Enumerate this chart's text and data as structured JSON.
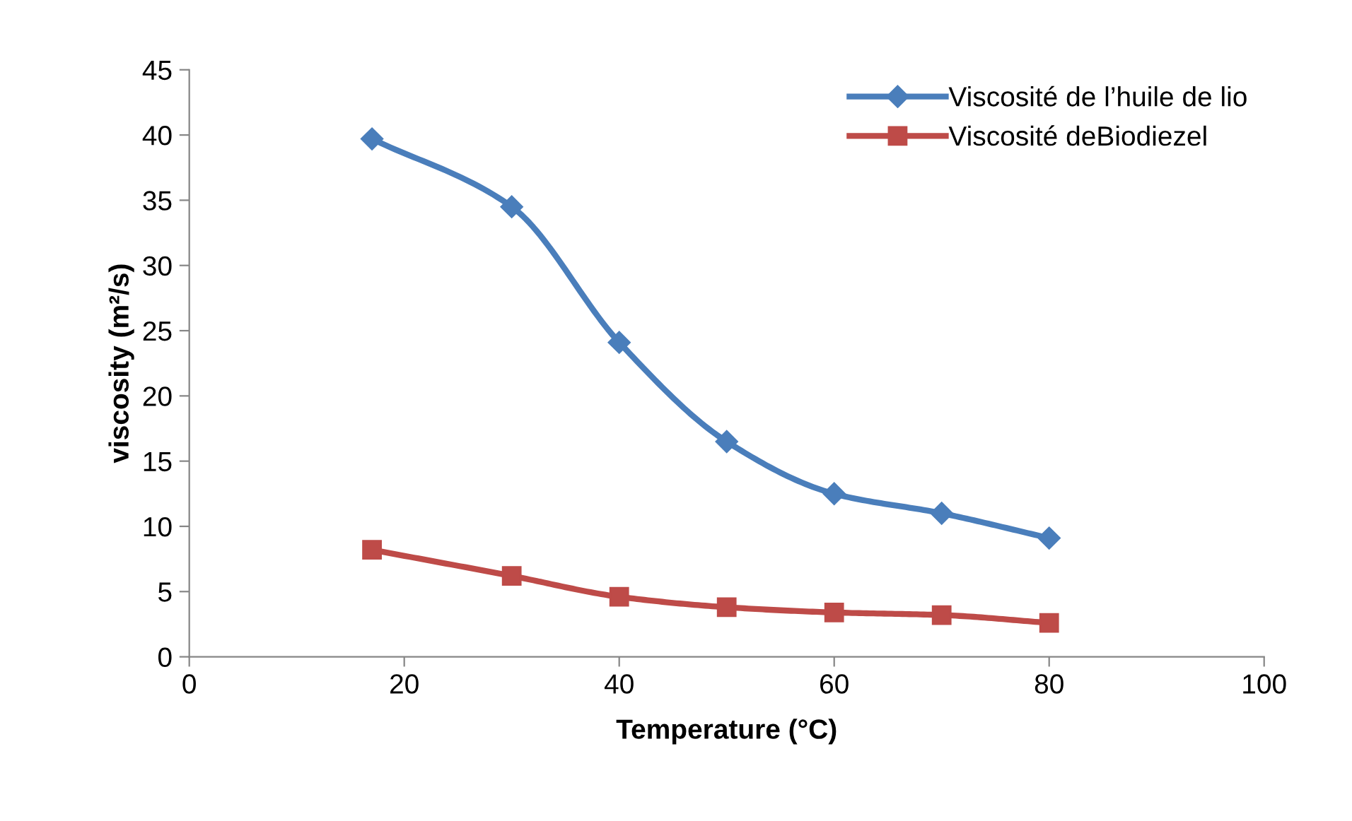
{
  "chart_data": {
    "type": "line",
    "xlabel": "Temperature (°C)",
    "ylabel": "viscosity (m²/s)",
    "x": [
      17,
      30,
      40,
      50,
      60,
      70,
      80
    ],
    "series": [
      {
        "name": "Viscosité de l’huile de lio",
        "color": "#4a7ebb",
        "marker": "diamond",
        "values": [
          39.7,
          34.5,
          24.1,
          16.5,
          12.5,
          11.0,
          9.1
        ]
      },
      {
        "name": "Viscosité deBiodiezel",
        "color": "#be4b48",
        "marker": "square",
        "values": [
          8.2,
          6.2,
          4.6,
          3.8,
          3.4,
          3.2,
          2.6
        ]
      }
    ],
    "xlim": [
      0,
      100
    ],
    "xticks": [
      0,
      20,
      40,
      60,
      80,
      100
    ],
    "ylim": [
      0,
      45
    ],
    "yticks": [
      0,
      5,
      10,
      15,
      20,
      25,
      30,
      35,
      40,
      45
    ],
    "grid": false,
    "legend": "top right",
    "line_style": "solid"
  }
}
